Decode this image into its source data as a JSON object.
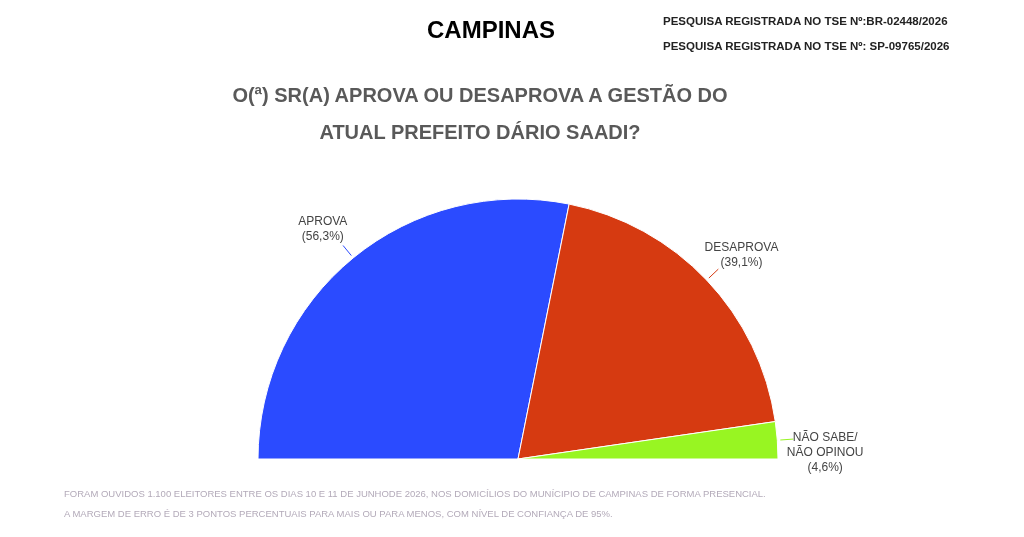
{
  "chart_data": {
    "type": "pie",
    "title": "CAMPINAS",
    "subtitle": "O(ª) SR(A) APROVA OU DESAPROVA A GESTÃO DO ATUAL PREFEITO DÁRIO SAADI?",
    "categories": [
      "APROVA",
      "DESAPROVA",
      "NÃO SABE/\nNÃO OPINOU"
    ],
    "values": [
      56.3,
      39.1,
      4.6
    ],
    "value_labels": [
      "(56,3%)",
      "(39,1%)",
      "(4,6%)"
    ],
    "colors": [
      "#2b4bff",
      "#d63a11",
      "#98f522"
    ],
    "annotations": [
      "PESQUISA REGISTRADA NO TSE Nº:BR-02448/2026",
      "PESQUISA REGISTRADA NO TSE Nº: SP-09765/2026",
      "FORAM OUVIDOS 1.100 ELEITORES ENTRE OS DIAS 10 E 11 DE JUNHODE 2026, NOS DOMICÍLIOS DO MUNÍCIPIO DE CAMPINAS DE FORMA PRESENCIAL.",
      "A MARGEM DE ERRO É DE 3 PONTOS PERCENTUAIS PARA MAIS OU PARA MENOS, COM NÍVEL DE CONFIANÇA DE 95%."
    ]
  }
}
